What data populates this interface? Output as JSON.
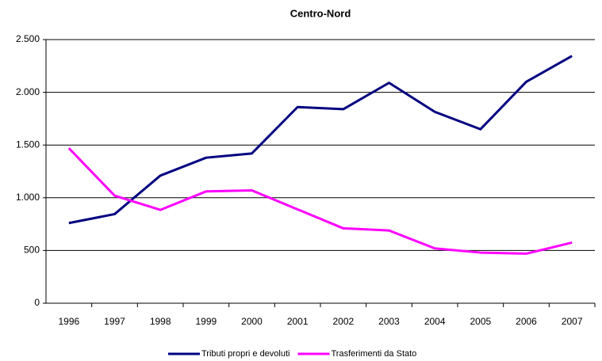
{
  "chart_data": {
    "type": "line",
    "title": "Centro-Nord",
    "categories": [
      "1996",
      "1997",
      "1998",
      "1999",
      "2000",
      "2001",
      "2002",
      "2003",
      "2004",
      "2005",
      "2006",
      "2007"
    ],
    "series": [
      {
        "name": "Tributi propri e devoluti",
        "color": "#000080",
        "values": [
          760,
          845,
          1210,
          1380,
          1420,
          1860,
          1840,
          2090,
          1815,
          1650,
          2100,
          2345
        ]
      },
      {
        "name": "Trasferimenti da Stato",
        "color": "#ff00ff",
        "values": [
          1470,
          1020,
          885,
          1060,
          1070,
          890,
          710,
          690,
          520,
          480,
          470,
          575
        ]
      }
    ],
    "ylim": [
      0,
      2500
    ],
    "yticks": [
      0,
      500,
      {
        "value": 1000,
        "label": "1.000"
      },
      {
        "value": 1500,
        "label": "1.500"
      },
      {
        "value": 2000,
        "label": "2.000"
      },
      {
        "value": 2500,
        "label": "2.500"
      }
    ],
    "grid": true,
    "legend": "bottom"
  }
}
